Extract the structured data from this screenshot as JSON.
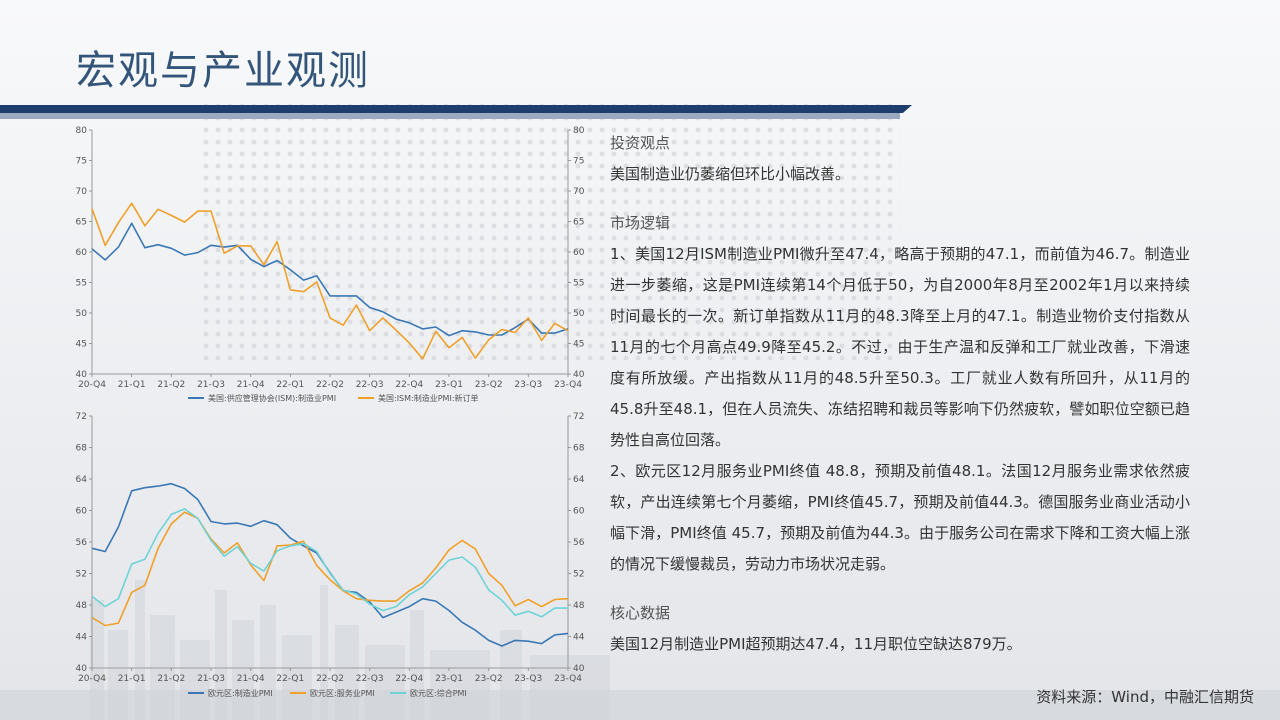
{
  "page": {
    "title": "宏观与产业观测",
    "source": "资料来源：Wind，中融汇信期货"
  },
  "sections": [
    {
      "heading": "投资观点",
      "paragraphs": [
        "美国制造业仍萎缩但环比小幅改善。"
      ]
    },
    {
      "heading": "市场逻辑",
      "paragraphs": [
        "1、美国12月ISM制造业PMI微升至47.4，略高于预期的47.1，而前值为46.7。制造业进一步萎缩，这是PMI连续第14个月低于50，为自2000年8月至2002年1月以来持续时间最长的一次。新订单指数从11月的48.3降至上月的47.1。制造业物价支付指数从11月的七个月高点49.9降至45.2。不过，由于生产温和反弹和工厂就业改善，下滑速度有所放缓。产出指数从11月的48.5升至50.3。工厂就业人数有所回升，从11月的45.8升至48.1，但在人员流失、冻结招聘和裁员等影响下仍然疲软，譬如职位空额已趋势性自高位回落。",
        "2、欧元区12月服务业PMI终值 48.8，预期及前值48.1。法国12月服务业需求依然疲软，产出连续第七个月萎缩，PMI终值45.7，预期及前值44.3。德国服务业商业活动小幅下滑，PMI终值 45.7，预期及前值为44.3。由于服务公司在需求下降和工资大幅上涨的情况下缓慢裁员，劳动力市场状况走弱。"
      ]
    },
    {
      "heading": "核心数据",
      "paragraphs": [
        "美国12月制造业PMI超预期达47.4，11月职位空缺达879万。"
      ]
    }
  ],
  "colors": {
    "title": "#34557a",
    "band_dark": "#1f3d6d",
    "series_blue": "#3a78b5",
    "series_orange": "#f0a02a",
    "series_cyan": "#6fd3d6"
  },
  "chart_data": [
    {
      "type": "line",
      "x_ticks": [
        "20-Q4",
        "21-Q1",
        "21-Q2",
        "21-Q3",
        "21-Q4",
        "22-Q1",
        "22-Q2",
        "22-Q3",
        "22-Q4",
        "23-Q1",
        "23-Q2",
        "23-Q3",
        "23-Q4"
      ],
      "ylim": [
        40,
        80
      ],
      "y_ticks": [
        40,
        45,
        50,
        55,
        60,
        65,
        70,
        75,
        80
      ],
      "y2_ticks": [
        40,
        45,
        50,
        55,
        60,
        65,
        70,
        75,
        80
      ],
      "grid": false,
      "legend": "bottom",
      "series": [
        {
          "name": "美国:供应管理协会(ISM):制造业PMI",
          "color": "#3a78b5",
          "values": [
            60.5,
            58.7,
            60.8,
            64.7,
            60.7,
            61.2,
            60.6,
            59.5,
            59.9,
            61.1,
            60.8,
            61.1,
            58.8,
            57.6,
            58.6,
            57.1,
            55.4,
            56.1,
            52.8,
            52.8,
            52.8,
            50.9,
            50.2,
            49.0,
            48.4,
            47.4,
            47.7,
            46.3,
            47.1,
            46.9,
            46.4,
            46.4,
            47.6,
            49.0,
            46.7,
            46.7,
            47.4
          ]
        },
        {
          "name": "美国:ISM:制造业PMI:新订单",
          "color": "#f0a02a",
          "values": [
            67.1,
            61.1,
            64.8,
            68.0,
            64.3,
            67.0,
            66.0,
            64.9,
            66.7,
            66.7,
            59.8,
            61.0,
            61.0,
            57.9,
            61.7,
            53.8,
            53.5,
            55.1,
            49.2,
            48.0,
            51.3,
            47.1,
            49.2,
            47.2,
            45.1,
            42.5,
            47.0,
            44.3,
            46.0,
            42.6,
            45.6,
            47.3,
            46.8,
            49.2,
            45.5,
            48.3,
            47.1
          ]
        }
      ]
    },
    {
      "type": "line",
      "x_ticks": [
        "20-Q4",
        "21-Q1",
        "21-Q2",
        "21-Q3",
        "21-Q4",
        "22-Q1",
        "22-Q2",
        "22-Q3",
        "22-Q4",
        "23-Q1",
        "23-Q2",
        "23-Q3",
        "23-Q4"
      ],
      "ylim": [
        40,
        72
      ],
      "y_ticks": [
        40,
        44,
        48,
        52,
        56,
        60,
        64,
        68,
        72
      ],
      "y2_ticks": [
        40,
        44,
        48,
        52,
        56,
        60,
        64,
        68,
        72
      ],
      "grid": false,
      "legend": "bottom",
      "series": [
        {
          "name": "欧元区:制造业PMI",
          "color": "#3a78b5",
          "values": [
            55.2,
            54.8,
            57.9,
            62.5,
            62.9,
            63.1,
            63.4,
            62.8,
            61.4,
            58.6,
            58.3,
            58.4,
            58.0,
            58.7,
            58.2,
            56.5,
            55.5,
            54.6,
            52.1,
            49.8,
            49.6,
            48.4,
            46.4,
            47.1,
            47.8,
            48.8,
            48.5,
            47.3,
            45.8,
            44.8,
            43.5,
            42.8,
            43.5,
            43.4,
            43.1,
            44.2,
            44.4
          ]
        },
        {
          "name": "欧元区:服务业PMI",
          "color": "#f0a02a",
          "values": [
            46.4,
            45.4,
            45.7,
            49.6,
            50.5,
            55.2,
            58.3,
            59.8,
            59.0,
            56.4,
            54.6,
            55.9,
            53.1,
            51.1,
            55.5,
            55.6,
            56.1,
            53.0,
            51.2,
            49.8,
            48.8,
            48.6,
            48.5,
            48.5,
            49.8,
            50.8,
            52.7,
            55.0,
            56.2,
            55.1,
            52.0,
            50.5,
            47.9,
            48.7,
            47.8,
            48.7,
            48.8
          ]
        },
        {
          "name": "欧元区:综合PMI",
          "color": "#6fd3d6",
          "values": [
            49.1,
            47.8,
            48.8,
            53.2,
            53.8,
            57.1,
            59.5,
            60.2,
            59.0,
            56.2,
            54.2,
            55.4,
            53.3,
            52.3,
            54.9,
            55.5,
            55.8,
            54.8,
            52.0,
            49.9,
            49.4,
            48.1,
            47.3,
            47.8,
            49.3,
            50.3,
            52.0,
            53.7,
            54.1,
            52.8,
            49.9,
            48.6,
            46.7,
            47.2,
            46.5,
            47.6,
            47.6
          ]
        }
      ]
    }
  ]
}
